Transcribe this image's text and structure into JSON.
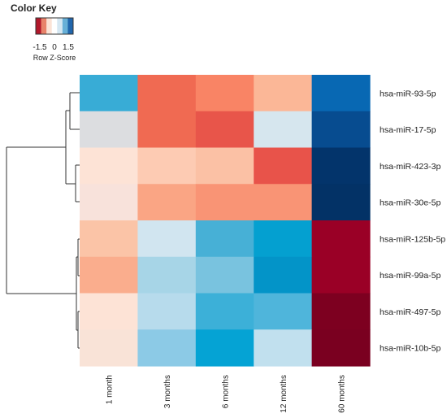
{
  "chart_data": {
    "type": "heatmap",
    "title": "",
    "color_key": {
      "title": "Color Key",
      "ticks": [
        "-1.5",
        "0",
        "1.5"
      ],
      "label": "Row Z-Score",
      "colors": [
        "#b2182b",
        "#e8836a",
        "#fbe3d6",
        "#ffffff",
        "#d5e7f2",
        "#67b0d7",
        "#2166ac"
      ]
    },
    "columns": [
      "1 month",
      "3 months",
      "6 months",
      "12 months",
      "60 months"
    ],
    "rows": [
      "hsa-miR-93-5p",
      "hsa-miR-17-5p",
      "hsa-miR-423-3p",
      "hsa-miR-30e-5p",
      "hsa-miR-125b-5p",
      "hsa-miR-99a-5p",
      "hsa-miR-497-5p",
      "hsa-miR-10b-5p"
    ],
    "cell_colors": [
      [
        "#38acd6",
        "#f06a52",
        "#f98465",
        "#fbb797",
        "#0868b3"
      ],
      [
        "#dcdde0",
        "#f06a52",
        "#e8554a",
        "#d6e6ee",
        "#074c90"
      ],
      [
        "#fde3d6",
        "#fdcbb3",
        "#fbc1a5",
        "#e8534a",
        "#03346b"
      ],
      [
        "#f8e2db",
        "#faa584",
        "#f99475",
        "#f99475",
        "#033266"
      ],
      [
        "#fbc4a7",
        "#d1e5f0",
        "#47b0d6",
        "#04a0d0",
        "#9a0026"
      ],
      [
        "#faad8d",
        "#a7d5e7",
        "#79c3df",
        "#0394c8",
        "#9a0026"
      ],
      [
        "#fde3d6",
        "#b7dbec",
        "#3cb0d8",
        "#4fb5db",
        "#7d0020"
      ],
      [
        "#f9e3d7",
        "#8ccae6",
        "#05a3d4",
        "#c1e0ee",
        "#7a0020"
      ]
    ]
  }
}
